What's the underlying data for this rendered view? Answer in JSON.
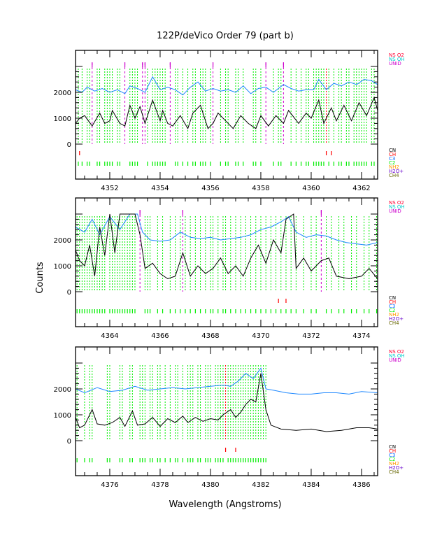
{
  "chart_data": {
    "type": "line",
    "title": "122P/deVico Order 79 (part b)",
    "xlabel": "Wavelength (Angstroms)",
    "ylabel": "Counts",
    "legend_top": [
      {
        "label": "NS O2",
        "color": "#ff0033"
      },
      {
        "label": "NS OH",
        "color": "#00cccc"
      },
      {
        "label": "UNID",
        "color": "#cc00cc"
      }
    ],
    "legend_bottom": [
      {
        "label": "CN",
        "color": "#000000"
      },
      {
        "label": "CH",
        "color": "#ff0000"
      },
      {
        "label": "C3",
        "color": "#0066ff"
      },
      {
        "label": "C2",
        "color": "#00ee00"
      },
      {
        "label": "NH2",
        "color": "#ff9900"
      },
      {
        "label": "H2O+",
        "color": "#6600cc"
      },
      {
        "label": "CH4",
        "color": "#666600"
      }
    ],
    "ylim": [
      -1380,
      3600
    ],
    "yticks": [
      "0",
      "1000",
      "2000"
    ],
    "panels": [
      {
        "xlim": [
          4350.64,
          4362.64
        ],
        "xticks": [
          "4352",
          "4354",
          "4356",
          "4358",
          "4360",
          "4362"
        ],
        "black": {
          "x": [
            4350.64,
            4350.8,
            4351.0,
            4351.3,
            4351.6,
            4351.8,
            4352.0,
            4352.1,
            4352.4,
            4352.6,
            4352.8,
            4353.0,
            4353.2,
            4353.4,
            4353.7,
            4354.0,
            4354.1,
            4354.3,
            4354.5,
            4354.8,
            4355.1,
            4355.3,
            4355.6,
            4355.9,
            4356.1,
            4356.3,
            4356.6,
            4356.9,
            4357.2,
            4357.5,
            4357.8,
            4358.0,
            4358.3,
            4358.6,
            4358.9,
            4359.1,
            4359.5,
            4359.8,
            4360.0,
            4360.3,
            4360.5,
            4360.8,
            4361.0,
            4361.3,
            4361.6,
            4361.9,
            4362.2,
            4362.5,
            4362.64
          ],
          "y": [
            800,
            1000,
            1100,
            700,
            1200,
            800,
            900,
            1300,
            800,
            700,
            1500,
            1000,
            1450,
            800,
            1700,
            900,
            1300,
            800,
            700,
            1100,
            600,
            1200,
            1500,
            600,
            800,
            1200,
            900,
            600,
            1100,
            800,
            600,
            1100,
            700,
            1100,
            800,
            1300,
            800,
            1200,
            1000,
            1700,
            800,
            1400,
            900,
            1500,
            900,
            1600,
            1100,
            1800,
            1300
          ]
        },
        "blue": {
          "x": [
            4350.64,
            4350.9,
            4351.1,
            4351.4,
            4351.7,
            4352.0,
            4352.3,
            4352.6,
            4352.8,
            4353.1,
            4353.4,
            4353.7,
            4354.0,
            4354.3,
            4354.6,
            4354.9,
            4355.2,
            4355.5,
            4355.8,
            4356.1,
            4356.4,
            4356.7,
            4357.0,
            4357.3,
            4357.6,
            4357.9,
            4358.2,
            4358.5,
            4358.9,
            4359.2,
            4359.5,
            4359.8,
            4360.1,
            4360.3,
            4360.6,
            4360.9,
            4361.2,
            4361.5,
            4361.8,
            4362.1,
            4362.4,
            4362.64
          ],
          "y": [
            2100,
            2000,
            2200,
            2050,
            2150,
            2000,
            2100,
            1950,
            2250,
            2150,
            2000,
            2600,
            2100,
            2200,
            2100,
            1900,
            2200,
            2400,
            2050,
            2150,
            2050,
            2100,
            2000,
            2250,
            1950,
            2150,
            2200,
            2000,
            2300,
            2150,
            2050,
            2100,
            2100,
            2500,
            2100,
            2350,
            2250,
            2400,
            2300,
            2500,
            2450,
            2300
          ]
        },
        "unid": [
          4351.3,
          4352.6,
          4353.3,
          4353.4,
          4354.4,
          4356.1,
          4358.2,
          4358.9
        ],
        "ch": [
          4350.8,
          4360.6,
          4360.8
        ],
        "ch_dashed": [
          4360.6
        ],
        "c2": [
          4350.75,
          4350.9,
          4351.1,
          4351.2,
          4351.5,
          4351.6,
          4351.8,
          4351.9,
          4352.0,
          4352.1,
          4352.3,
          4352.4,
          4352.8,
          4352.9,
          4353.0,
          4353.1,
          4353.5,
          4353.7,
          4353.8,
          4353.9,
          4354.0,
          4354.1,
          4354.2,
          4354.6,
          4354.7,
          4354.9,
          4355.1,
          4355.3,
          4355.4,
          4355.6,
          4355.7,
          4355.8,
          4356.0,
          4356.4,
          4356.6,
          4356.7,
          4357.0,
          4357.1,
          4357.3,
          4357.7,
          4357.8,
          4358.0,
          4358.5,
          4358.7,
          4358.8,
          4359.2,
          4359.4,
          4359.6,
          4359.8,
          4359.9,
          4360.1,
          4360.2,
          4360.3,
          4360.4,
          4360.5,
          4360.7,
          4360.9,
          4361.1,
          4361.2,
          4361.4,
          4361.5,
          4361.7,
          4361.8,
          4361.9,
          4362.0,
          4362.1,
          4362.2,
          4362.4,
          4362.5
        ]
      },
      {
        "xlim": [
          4362.64,
          4374.64
        ],
        "xticks": [
          "4364",
          "4366",
          "4368",
          "4370",
          "4372",
          "4374"
        ],
        "black": {
          "x": [
            4362.64,
            4362.8,
            4363.0,
            4363.2,
            4363.4,
            4363.6,
            4363.8,
            4364.0,
            4364.2,
            4364.4,
            4364.7,
            4365.0,
            4365.2,
            4365.4,
            4365.7,
            4366.0,
            4366.3,
            4366.6,
            4366.9,
            4367.2,
            4367.5,
            4367.8,
            4368.1,
            4368.4,
            4368.7,
            4369.0,
            4369.3,
            4369.6,
            4369.9,
            4370.2,
            4370.5,
            4370.8,
            4371.0,
            4371.3,
            4371.4,
            4371.7,
            4372.0,
            4372.4,
            4372.7,
            4373.0,
            4373.5,
            4374.0,
            4374.3,
            4374.64
          ],
          "y": [
            1600,
            1200,
            1000,
            1800,
            600,
            2500,
            1400,
            3000,
            1500,
            3000,
            3000,
            3000,
            2200,
            900,
            1100,
            700,
            500,
            600,
            1500,
            600,
            1000,
            700,
            900,
            1300,
            700,
            1000,
            600,
            1300,
            1800,
            1100,
            2000,
            1500,
            2800,
            3000,
            900,
            1300,
            800,
            1200,
            1300,
            600,
            500,
            600,
            900,
            500
          ]
        },
        "blue": {
          "x": [
            4362.64,
            4363.0,
            4363.3,
            4363.6,
            4364.0,
            4364.4,
            4364.8,
            4365.1,
            4365.3,
            4365.6,
            4366.0,
            4366.4,
            4366.8,
            4367.2,
            4367.6,
            4368.0,
            4368.4,
            4368.8,
            4369.2,
            4369.6,
            4370.0,
            4370.4,
            4370.8,
            4371.1,
            4371.4,
            4371.8,
            4372.2,
            4372.6,
            4373.0,
            4373.4,
            4373.8,
            4374.2,
            4374.64
          ],
          "y": [
            2500,
            2300,
            2800,
            2200,
            2900,
            2400,
            3000,
            3000,
            2300,
            2000,
            1950,
            2000,
            2300,
            2100,
            2050,
            2100,
            2000,
            2050,
            2100,
            2200,
            2400,
            2500,
            2700,
            2900,
            2300,
            2100,
            2200,
            2150,
            2000,
            1900,
            1850,
            1800,
            1900
          ]
        },
        "unid": [
          4365.2,
          4366.9,
          4372.4
        ],
        "ch": [
          4370.7,
          4371.0
        ],
        "ch_dashed": [],
        "c2": [
          4362.7,
          4362.8,
          4362.9,
          4363.0,
          4363.1,
          4363.2,
          4363.3,
          4363.4,
          4363.5,
          4363.6,
          4363.7,
          4363.8,
          4364.0,
          4364.1,
          4364.2,
          4364.3,
          4364.4,
          4364.5,
          4364.6,
          4364.7,
          4364.8,
          4364.9,
          4365.0,
          4365.4,
          4365.5,
          4365.6,
          4365.9,
          4366.1,
          4366.4,
          4366.6,
          4366.8,
          4367.0,
          4367.2,
          4367.4,
          4367.6,
          4367.8,
          4368.0,
          4368.1,
          4368.3,
          4368.5,
          4368.6,
          4368.8,
          4369.0,
          4369.2,
          4369.4,
          4369.6,
          4369.8,
          4370.0,
          4370.2,
          4370.4,
          4370.6,
          4370.8,
          4371.0,
          4371.2,
          4371.4,
          4371.7,
          4372.0,
          4372.2,
          4372.6,
          4372.8,
          4373.1,
          4373.3,
          4373.6,
          4373.8,
          4374.1,
          4374.3,
          4374.6
        ]
      },
      {
        "xlim": [
          4374.64,
          4386.64
        ],
        "xticks": [
          "4376",
          "4378",
          "4380",
          "4382",
          "4384",
          "4386"
        ],
        "black": {
          "x": [
            4374.64,
            4374.8,
            4375.0,
            4375.3,
            4375.5,
            4375.8,
            4376.1,
            4376.4,
            4376.6,
            4376.9,
            4377.1,
            4377.4,
            4377.7,
            4378.0,
            4378.3,
            4378.6,
            4378.9,
            4379.1,
            4379.4,
            4379.7,
            4380.0,
            4380.3,
            4380.5,
            4380.8,
            4381.0,
            4381.2,
            4381.4,
            4381.6,
            4381.8,
            4382.0,
            4382.2,
            4382.4,
            4382.8,
            4383.4,
            4384.0,
            4384.6,
            4385.2,
            4385.8,
            4386.3,
            4386.64
          ],
          "y": [
            900,
            500,
            600,
            1200,
            650,
            600,
            700,
            900,
            550,
            1150,
            600,
            650,
            900,
            550,
            850,
            700,
            950,
            700,
            900,
            750,
            850,
            800,
            1000,
            1200,
            900,
            1100,
            1400,
            1600,
            1500,
            2600,
            1200,
            600,
            450,
            400,
            450,
            350,
            400,
            500,
            500,
            450
          ]
        },
        "blue": {
          "x": [
            4374.64,
            4375.0,
            4375.5,
            4376.0,
            4376.5,
            4377.0,
            4377.5,
            4378.0,
            4378.5,
            4379.0,
            4379.5,
            4380.0,
            4380.5,
            4380.8,
            4381.1,
            4381.4,
            4381.7,
            4382.0,
            4382.2,
            4382.5,
            4383.0,
            4383.5,
            4384.0,
            4384.5,
            4385.0,
            4385.5,
            4386.0,
            4386.64
          ],
          "y": [
            2000,
            1850,
            2050,
            1900,
            1950,
            2100,
            1950,
            2000,
            2050,
            2000,
            2050,
            2100,
            2150,
            2100,
            2300,
            2600,
            2400,
            2800,
            2000,
            1950,
            1850,
            1800,
            1800,
            1850,
            1850,
            1800,
            1900,
            1850
          ]
        },
        "unid": [],
        "ch": [
          4380.6,
          4381.0
        ],
        "ch_dashed": [
          4380.6
        ],
        "c2": [
          4374.7,
          4375.0,
          4375.2,
          4375.3,
          4375.9,
          4376.0,
          4376.4,
          4376.5,
          4376.8,
          4376.9,
          4377.2,
          4377.3,
          4377.4,
          4377.6,
          4377.7,
          4377.9,
          4378.0,
          4378.2,
          4378.4,
          4378.6,
          4378.7,
          4378.9,
          4379.1,
          4379.2,
          4379.3,
          4379.5,
          4379.6,
          4379.8,
          4379.9,
          4380.0,
          4380.2,
          4380.3,
          4380.4,
          4380.5,
          4380.7,
          4380.8,
          4380.9,
          4381.0,
          4381.1,
          4381.2,
          4381.3,
          4381.4,
          4381.5,
          4381.6,
          4381.7,
          4381.8,
          4381.9,
          4382.0,
          4382.1,
          4382.2
        ]
      }
    ]
  }
}
